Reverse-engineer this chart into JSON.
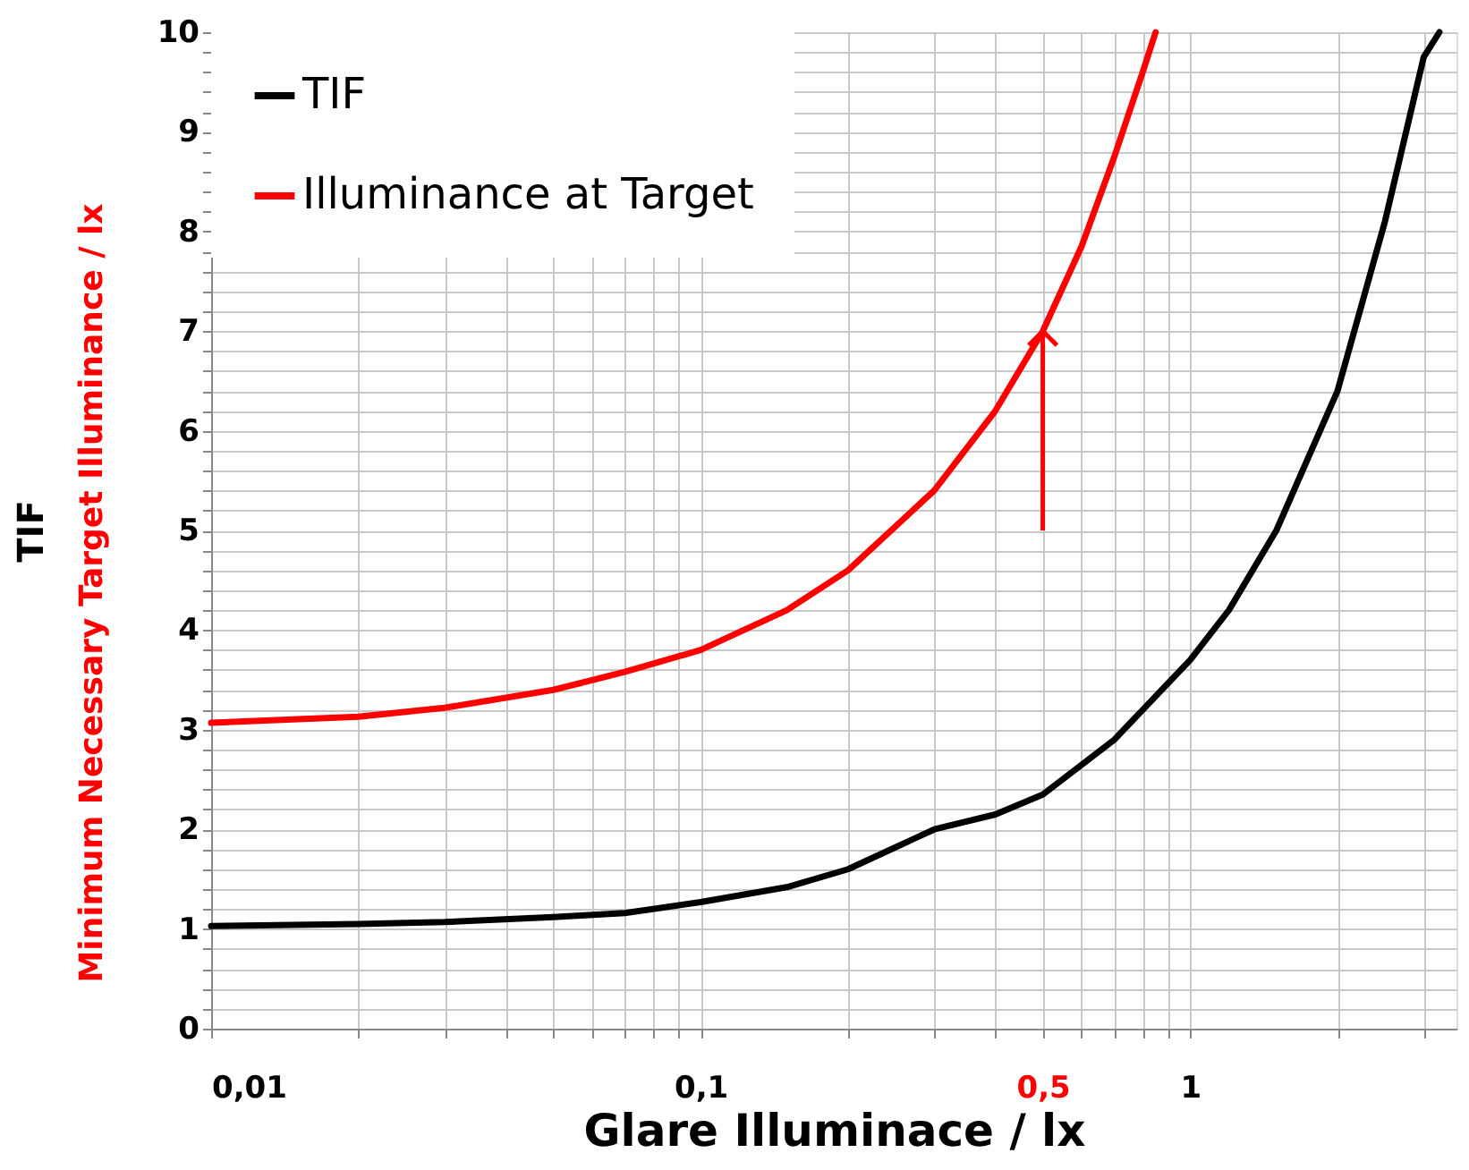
{
  "chart_data": {
    "type": "line",
    "xlabel": "Glare Illuminace / lx",
    "ylabel": "TIF",
    "annotations": [
      "Minimum Necessary Target Illuminance / lx"
    ],
    "log": "x",
    "xlim": [
      0.01,
      3.5
    ],
    "ylim": [
      0,
      10
    ],
    "xticks": [
      {
        "value": 0.01,
        "label": "0,01"
      },
      {
        "value": 0.02,
        "label": null
      },
      {
        "value": 0.03,
        "label": null
      },
      {
        "value": 0.04,
        "label": null
      },
      {
        "value": 0.05,
        "label": null
      },
      {
        "value": 0.06,
        "label": null
      },
      {
        "value": 0.07,
        "label": null
      },
      {
        "value": 0.08,
        "label": null
      },
      {
        "value": 0.09,
        "label": null
      },
      {
        "value": 0.1,
        "label": "0,1"
      },
      {
        "value": 0.2,
        "label": null
      },
      {
        "value": 0.3,
        "label": null
      },
      {
        "value": 0.4,
        "label": null
      },
      {
        "value": 0.5,
        "label": "0,5"
      },
      {
        "value": 0.6,
        "label": null
      },
      {
        "value": 0.7,
        "label": null
      },
      {
        "value": 0.8,
        "label": null
      },
      {
        "value": 0.9,
        "label": null
      },
      {
        "value": 1,
        "label": "1"
      },
      {
        "value": 2,
        "label": null
      },
      {
        "value": 3,
        "label": null
      }
    ],
    "yticks": [
      0,
      {
        "value": 0.2,
        "label": null
      },
      {
        "value": 0.4,
        "label": null
      },
      {
        "value": 0.6,
        "label": null
      },
      {
        "value": 0.8,
        "label": null
      },
      1,
      {
        "value": 1.2,
        "label": null
      },
      {
        "value": 1.4,
        "label": null
      },
      {
        "value": 1.6,
        "label": null
      },
      {
        "value": 1.8,
        "label": null
      },
      2,
      {
        "value": 2.2,
        "label": null
      },
      {
        "value": 2.4,
        "label": null
      },
      {
        "value": 2.6,
        "label": null
      },
      {
        "value": 2.8,
        "label": null
      },
      3,
      {
        "value": 3.2,
        "label": null
      },
      {
        "value": 3.4,
        "label": null
      },
      {
        "value": 3.6,
        "label": null
      },
      {
        "value": 3.8,
        "label": null
      },
      4,
      {
        "value": 4.2,
        "label": null
      },
      {
        "value": 4.4,
        "label": null
      },
      {
        "value": 4.6,
        "label": null
      },
      {
        "value": 4.8,
        "label": null
      },
      5,
      {
        "value": 5.2,
        "label": null
      },
      {
        "value": 5.4,
        "label": null
      },
      {
        "value": 5.6,
        "label": null
      },
      {
        "value": 5.8,
        "label": null
      },
      6,
      {
        "value": 6.2,
        "label": null
      },
      {
        "value": 6.4,
        "label": null
      },
      {
        "value": 6.6,
        "label": null
      },
      {
        "value": 6.8,
        "label": null
      },
      7,
      {
        "value": 7.2,
        "label": null
      },
      {
        "value": 7.4,
        "label": null
      },
      {
        "value": 7.6,
        "label": null
      },
      {
        "value": 7.8,
        "label": null
      },
      8,
      {
        "value": 8.2,
        "label": null
      },
      {
        "value": 8.4,
        "label": null
      },
      {
        "value": 8.6,
        "label": null
      },
      {
        "value": 8.8,
        "label": null
      },
      9,
      {
        "value": 9.2,
        "label": null
      },
      {
        "value": 9.4,
        "label": null
      },
      {
        "value": 9.6,
        "label": null
      },
      {
        "value": 9.8,
        "label": null
      },
      10
    ],
    "grid": true,
    "legend": "top left",
    "ref_lines": [
      {
        "axis": "x",
        "value": 0.5,
        "color": "#ff0000"
      }
    ],
    "series": [
      {
        "name": "TIF",
        "color": "#000000",
        "x": [
          0.01,
          0.02,
          0.03,
          0.05,
          0.07,
          0.1,
          0.15,
          0.2,
          0.3,
          0.4,
          0.5,
          0.7,
          1,
          1.2,
          1.5,
          2,
          2.5,
          3,
          3.23
        ],
        "values": [
          1.03,
          1.05,
          1.07,
          1.12,
          1.16,
          1.27,
          1.42,
          1.6,
          2.0,
          2.15,
          2.35,
          2.9,
          3.7,
          4.2,
          5.0,
          6.4,
          8.1,
          9.75,
          10
        ]
      },
      {
        "name": "Illuminance at Target",
        "color": "#ff0000",
        "x": [
          0.01,
          0.02,
          0.03,
          0.05,
          0.07,
          0.1,
          0.15,
          0.2,
          0.3,
          0.4,
          0.5,
          0.6,
          0.7,
          0.8,
          0.85
        ],
        "values": [
          3.07,
          3.13,
          3.22,
          3.4,
          3.58,
          3.8,
          4.2,
          4.6,
          5.4,
          6.2,
          7.0,
          7.85,
          8.75,
          9.6,
          10
        ]
      }
    ]
  }
}
